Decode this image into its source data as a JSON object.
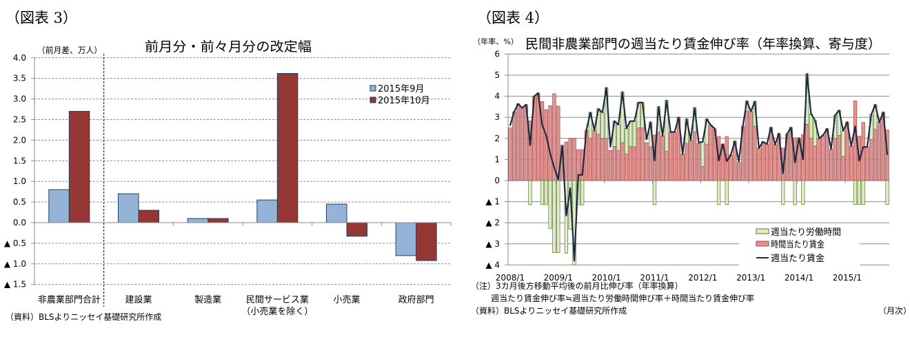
{
  "figure3": {
    "label": "（図表 3）",
    "source": "（資料）BLSよりニッセイ基礎研究所作成"
  },
  "figure4": {
    "label": "（図表 4）",
    "note_line1": "（注）3カ月後方移動平均後の前月比伸び率（年率換算）",
    "note_line2": "週当たり賃金伸び率≒週当たり労働時間伸び率＋時間当たり賃金伸び率",
    "source": "（資料）BLSよりニッセイ基礎研究所作成"
  },
  "chart_data": [
    {
      "type": "bar",
      "title": "前月分・前々月分の改定幅",
      "ylabel": "（前月差、万人）",
      "xlabel": "",
      "categories": [
        "非農業部門合計",
        "建設業",
        "製造業",
        "民間サービス業",
        "小売業",
        "政府部門"
      ],
      "category_sublabels": [
        "",
        "",
        "",
        "（小売業を除く）",
        "",
        ""
      ],
      "series": [
        {
          "name": "2015年9月",
          "color": "#95B3D7",
          "values": [
            0.8,
            0.7,
            0.1,
            0.55,
            0.45,
            -0.8
          ]
        },
        {
          "name": "2015年10月",
          "color": "#953735",
          "values": [
            2.7,
            0.3,
            0.1,
            3.62,
            -0.33,
            -0.92
          ]
        }
      ],
      "ylim": [
        -1.5,
        4.0
      ],
      "yticks": [
        4.0,
        3.5,
        3.0,
        2.5,
        2.0,
        1.5,
        1.0,
        0.5,
        0.0,
        -0.5,
        -1.0,
        -1.5
      ],
      "ytick_labels": [
        "4.0",
        "3.5",
        "3.0",
        "2.5",
        "2.0",
        "1.5",
        "1.0",
        "0.5",
        "0.0",
        "▲ 0.5",
        "▲ 1.0",
        "▲ 1.5"
      ],
      "grid": true,
      "legend": "top-right"
    },
    {
      "type": "bar",
      "subtype": "stacked bar + line",
      "title": "民間非農業部門の週当たり賃金伸び率（年率換算、寄与度）",
      "ylabel": "（年率、%）",
      "xlabel": "（月次）",
      "x_start": "2008/1",
      "x_end": "2015/11",
      "x_tick_labels": [
        "2008/1",
        "2009/1",
        "2010/1",
        "2011/1",
        "2012/1",
        "2013/1",
        "2014/1",
        "2015/1"
      ],
      "ylim": [
        -4,
        6
      ],
      "yticks": [
        6,
        5,
        4,
        3,
        2,
        1,
        0,
        -1,
        -2,
        -3,
        -4
      ],
      "ytick_labels": [
        "6",
        "5",
        "4",
        "3",
        "2",
        "1",
        "0",
        "▲ 1",
        "▲ 2",
        "▲ 3",
        "▲ 4"
      ],
      "grid": true,
      "legend": "bottom-right",
      "series": [
        {
          "name": "週当たり労働時間",
          "kind": "bar",
          "color": "#D7E4BD",
          "values": [
            0,
            0,
            0,
            0,
            0,
            -1.14,
            0,
            0,
            -1.14,
            -1.14,
            -2.28,
            -3.42,
            -3.42,
            0,
            -3.45,
            -2.3,
            -4.0,
            -1.15,
            -1.15,
            0,
            1.23,
            0,
            1.2,
            1.23,
            2.4,
            0,
            1.2,
            1.22,
            2.4,
            1.2,
            1.2,
            1.22,
            1.2,
            1.2,
            0,
            1.17,
            -1.14,
            1.2,
            0,
            2.4,
            0,
            0,
            0,
            0,
            1.16,
            0,
            1.15,
            0,
            1.17,
            1.19,
            0,
            0,
            -1.14,
            0,
            -1.14,
            0,
            0,
            0,
            0,
            0.49,
            0,
            1.17,
            0,
            0,
            0,
            0,
            0,
            0,
            -1.14,
            0,
            0,
            -1.14,
            0,
            -1.13,
            2.39,
            1.16,
            1.21,
            0,
            0,
            0,
            0,
            1.1,
            1.19,
            1.2,
            0,
            0,
            -1.13,
            -1.13,
            -1.13,
            0,
            1.18,
            1.17,
            0,
            0,
            -1.13
          ]
        },
        {
          "name": "時間当たり賃金",
          "kind": "bar",
          "color": "#DA9694",
          "values": [
            2.5,
            3.26,
            3.64,
            3.45,
            3.6,
            2.83,
            3.99,
            4.15,
            3.75,
            3.36,
            3.55,
            4.12,
            3.53,
            1.68,
            1.83,
            2.0,
            2.0,
            1.47,
            1.47,
            2.38,
            2.0,
            2.38,
            2.2,
            2.0,
            2.0,
            1.43,
            1.62,
            1.43,
            1.8,
            1.27,
            1.62,
            1.6,
            2.5,
            2.5,
            1.8,
            1.6,
            2.16,
            2.3,
            2.12,
            1.4,
            2.3,
            2.3,
            3.0,
            1.25,
            1.76,
            1.92,
            2.3,
            1.76,
            0.67,
            1.73,
            2.63,
            2.45,
            2.09,
            1.73,
            2.09,
            1.22,
            1.87,
            0.86,
            2.58,
            3.28,
            3.28,
            2.58,
            1.54,
            1.84,
            1.73,
            2.52,
            1.7,
            2.23,
            1.54,
            2.2,
            2.52,
            2.03,
            2.02,
            2.18,
            2.67,
            2.0,
            1.64,
            2.0,
            2.15,
            2.46,
            1.5,
            2.0,
            2.14,
            1.15,
            2.78,
            1.64,
            3.78,
            2.1,
            2.76,
            1.6,
            1.95,
            2.43,
            2.76,
            3.24,
            2.4
          ]
        },
        {
          "name": "週当たり賃金",
          "kind": "line",
          "color": "#1C2B3F",
          "values": [
            2.6,
            3.26,
            3.64,
            3.45,
            3.6,
            1.68,
            4.0,
            4.15,
            2.63,
            2.14,
            1.27,
            0.62,
            0.05,
            1.65,
            -1.66,
            -0.35,
            -3.8,
            0.27,
            0.27,
            2.38,
            3.23,
            2.38,
            3.4,
            3.23,
            4.4,
            1.6,
            2.82,
            2.65,
            4.2,
            2.47,
            2.82,
            2.82,
            3.7,
            3.7,
            1.95,
            2.77,
            0.95,
            3.5,
            2.12,
            3.8,
            2.3,
            2.3,
            3.0,
            1.25,
            2.92,
            1.92,
            3.45,
            1.8,
            1.84,
            2.92,
            2.63,
            2.47,
            0.95,
            1.73,
            0.92,
            1.22,
            1.87,
            0.9,
            2.58,
            3.77,
            3.28,
            3.75,
            1.54,
            1.84,
            1.73,
            2.52,
            1.7,
            2.23,
            0.35,
            2.2,
            2.52,
            0.86,
            2.02,
            1.0,
            5.06,
            3.16,
            2.85,
            2.0,
            2.15,
            2.46,
            1.5,
            3.1,
            3.33,
            2.35,
            2.78,
            1.64,
            2.57,
            0.94,
            1.59,
            1.6,
            3.13,
            3.6,
            2.76,
            3.24,
            1.22
          ]
        }
      ]
    }
  ]
}
